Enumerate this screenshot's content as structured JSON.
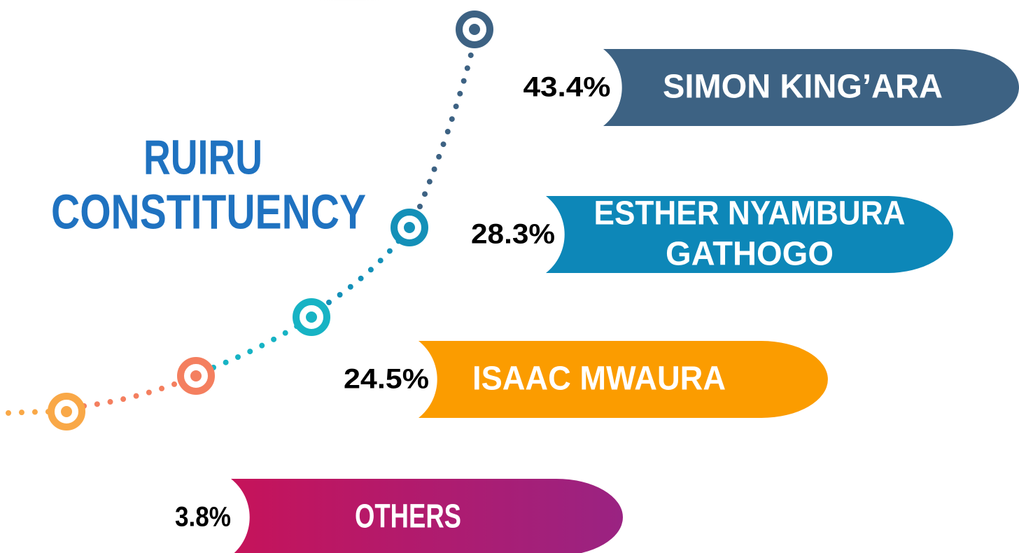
{
  "title": {
    "lines": [
      "RUIRU",
      "CONSTITUENCY"
    ]
  },
  "candidates": [
    {
      "name": [
        "SIMON KING’ARA"
      ],
      "percent": "43.4%"
    },
    {
      "name": [
        "ESTHER NYAMBURA",
        "GATHOGO"
      ],
      "percent": "28.3%"
    },
    {
      "name": [
        "ISAAC MWAURA"
      ],
      "percent": "24.5%"
    },
    {
      "name": [
        "OTHERS"
      ],
      "percent": "3.8%"
    }
  ]
}
